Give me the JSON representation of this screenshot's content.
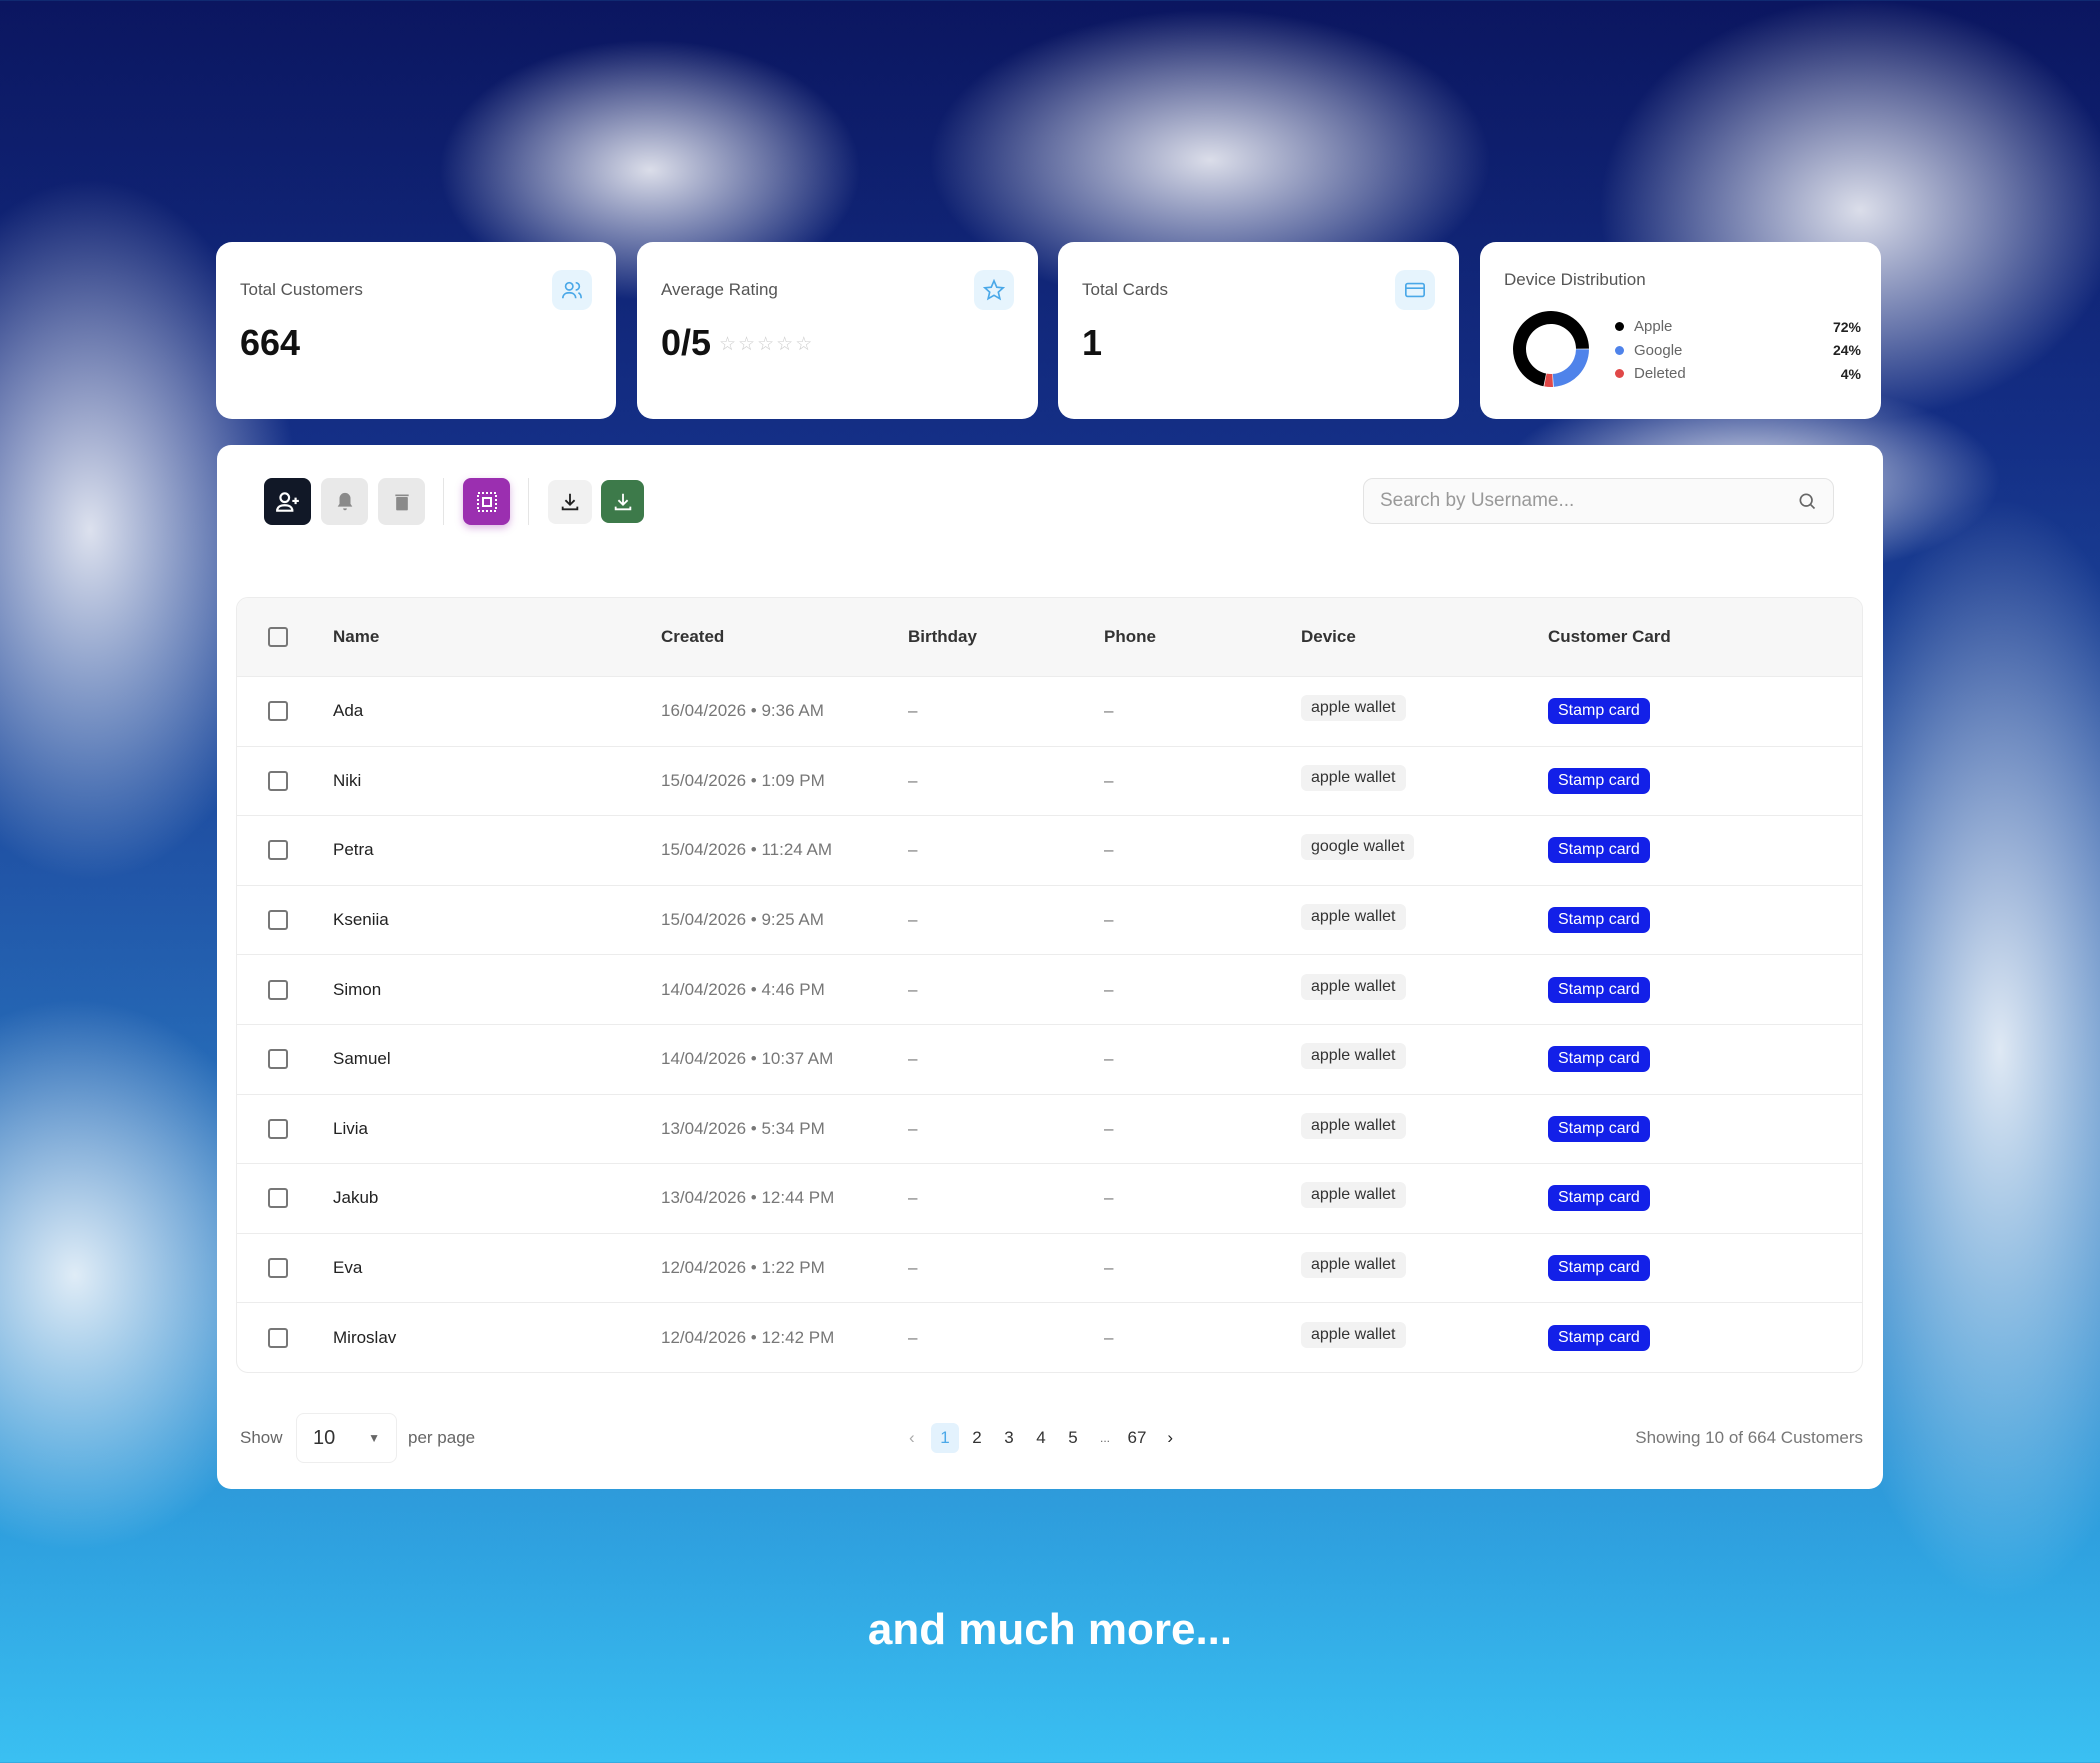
{
  "stats": {
    "total_customers": {
      "label": "Total Customers",
      "value": "664",
      "icon": "users-icon"
    },
    "average_rating": {
      "label": "Average Rating",
      "value": "0/5",
      "rating": 0,
      "max": 5,
      "icon": "star-icon"
    },
    "total_cards": {
      "label": "Total Cards",
      "value": "1",
      "icon": "credit-card-icon"
    },
    "device_distribution": {
      "label": "Device Distribution",
      "items": [
        {
          "name": "Apple",
          "percent": "72%",
          "value": 72,
          "color": "#000000"
        },
        {
          "name": "Google",
          "percent": "24%",
          "value": 24,
          "color": "#4f83ea"
        },
        {
          "name": "Deleted",
          "percent": "4%",
          "value": 4,
          "color": "#e04848"
        }
      ]
    }
  },
  "toolbar": {
    "add_customer_color": "#111827",
    "select_color": "#9b2fb0",
    "export_color": "#3d7a4a"
  },
  "search": {
    "placeholder": "Search by Username...",
    "value": ""
  },
  "table": {
    "columns": [
      "Name",
      "Created",
      "Birthday",
      "Phone",
      "Device",
      "Customer Card"
    ],
    "rows": [
      {
        "name": "Ada",
        "created": "16/04/2026 • 9:36 AM",
        "birthday": "–",
        "phone": "–",
        "device": "apple wallet",
        "card": "Stamp card"
      },
      {
        "name": "Niki",
        "created": "15/04/2026 • 1:09 PM",
        "birthday": "–",
        "phone": "–",
        "device": "apple wallet",
        "card": "Stamp card"
      },
      {
        "name": "Petra",
        "created": "15/04/2026 • 11:24 AM",
        "birthday": "–",
        "phone": "–",
        "device": "google wallet",
        "card": "Stamp card"
      },
      {
        "name": "Kseniia",
        "created": "15/04/2026 • 9:25 AM",
        "birthday": "–",
        "phone": "–",
        "device": "apple wallet",
        "card": "Stamp card"
      },
      {
        "name": "Simon",
        "created": "14/04/2026 • 4:46 PM",
        "birthday": "–",
        "phone": "–",
        "device": "apple wallet",
        "card": "Stamp card"
      },
      {
        "name": "Samuel",
        "created": "14/04/2026 • 10:37 AM",
        "birthday": "–",
        "phone": "–",
        "device": "apple wallet",
        "card": "Stamp card"
      },
      {
        "name": "Livia",
        "created": "13/04/2026 • 5:34 PM",
        "birthday": "–",
        "phone": "–",
        "device": "apple wallet",
        "card": "Stamp card"
      },
      {
        "name": "Jakub",
        "created": "13/04/2026 • 12:44 PM",
        "birthday": "–",
        "phone": "–",
        "device": "apple wallet",
        "card": "Stamp card"
      },
      {
        "name": "Eva",
        "created": "12/04/2026 • 1:22 PM",
        "birthday": "–",
        "phone": "–",
        "device": "apple wallet",
        "card": "Stamp card"
      },
      {
        "name": "Miroslav",
        "created": "12/04/2026 • 12:42 PM",
        "birthday": "–",
        "phone": "–",
        "device": "apple wallet",
        "card": "Stamp card"
      }
    ]
  },
  "footer": {
    "show_label": "Show",
    "per_page_value": "10",
    "per_page_label": "per page",
    "pages": [
      "1",
      "2",
      "3",
      "4",
      "5",
      "...",
      "67"
    ],
    "current_page": "1",
    "summary": "Showing 10 of 664 Customers"
  },
  "tagline": "and much more..."
}
